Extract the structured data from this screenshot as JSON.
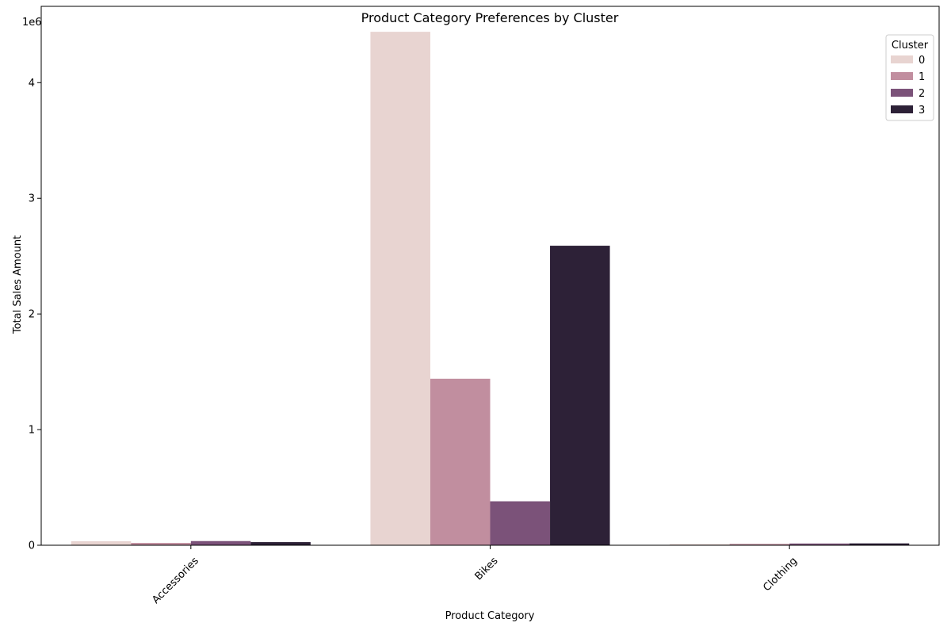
{
  "chart_data": {
    "type": "bar",
    "title": "Product Category Preferences by Cluster",
    "xlabel": "Product Category",
    "ylabel": "Total Sales Amount",
    "y_scale_note": "1e6",
    "categories": [
      "Accessories",
      "Bikes",
      "Clothing"
    ],
    "ylim": [
      0,
      4660000
    ],
    "yticks": [
      0,
      1000000,
      2000000,
      3000000,
      4000000
    ],
    "ytick_labels": [
      "0",
      "1",
      "2",
      "3",
      "4"
    ],
    "legend": {
      "title": "Cluster",
      "placement": "top-right"
    },
    "series": [
      {
        "name": "0",
        "color": "#e8d4d1",
        "values": [
          35000,
          4440000,
          10000
        ]
      },
      {
        "name": "1",
        "color": "#c18e9f",
        "values": [
          20000,
          1440000,
          12000
        ]
      },
      {
        "name": "2",
        "color": "#7b5279",
        "values": [
          36000,
          380000,
          15000
        ]
      },
      {
        "name": "3",
        "color": "#2d2137",
        "values": [
          27000,
          2590000,
          16000
        ]
      }
    ]
  }
}
